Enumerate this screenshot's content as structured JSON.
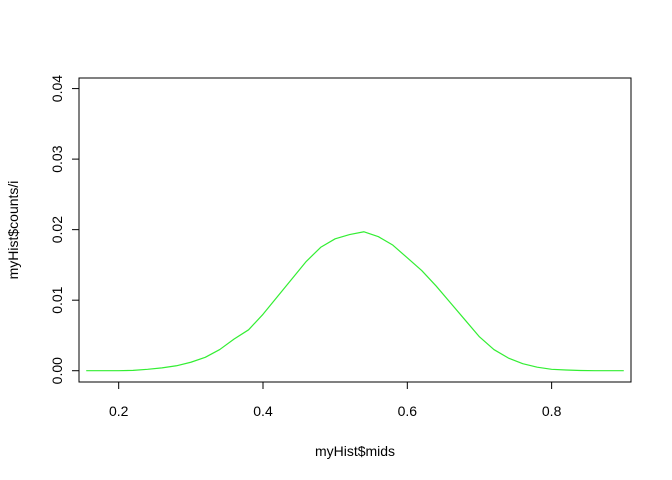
{
  "chart_data": {
    "type": "line",
    "xlabel": "myHist$mids",
    "ylabel": "myHist$counts/i",
    "xlim": [
      0.145,
      0.91
    ],
    "ylim": [
      -0.0016,
      0.0415
    ],
    "x_ticks": [
      0.2,
      0.4,
      0.6,
      0.8
    ],
    "x_tick_labels": [
      "0.2",
      "0.4",
      "0.6",
      "0.8"
    ],
    "y_ticks": [
      0.0,
      0.01,
      0.02,
      0.03,
      0.04
    ],
    "y_tick_labels": [
      "0.00",
      "0.01",
      "0.02",
      "0.03",
      "0.04"
    ],
    "series": [
      {
        "color": "#33ee33",
        "x": [
          0.155,
          0.18,
          0.2,
          0.22,
          0.24,
          0.26,
          0.28,
          0.3,
          0.32,
          0.34,
          0.36,
          0.38,
          0.4,
          0.42,
          0.44,
          0.46,
          0.48,
          0.5,
          0.52,
          0.54,
          0.56,
          0.58,
          0.6,
          0.62,
          0.64,
          0.66,
          0.68,
          0.7,
          0.72,
          0.74,
          0.76,
          0.78,
          0.8,
          0.82,
          0.84,
          0.86,
          0.88,
          0.9
        ],
        "y": [
          0.0,
          0.0,
          0.0,
          5e-05,
          0.0002,
          0.0004,
          0.0007,
          0.0012,
          0.0019,
          0.003,
          0.0045,
          0.0058,
          0.008,
          0.0105,
          0.013,
          0.0155,
          0.0175,
          0.0187,
          0.0193,
          0.0197,
          0.019,
          0.0178,
          0.016,
          0.0142,
          0.012,
          0.0096,
          0.0072,
          0.0048,
          0.003,
          0.0018,
          0.001,
          0.0005,
          0.0002,
          0.0001,
          3e-05,
          0.0,
          0.0,
          0.0
        ]
      }
    ]
  }
}
